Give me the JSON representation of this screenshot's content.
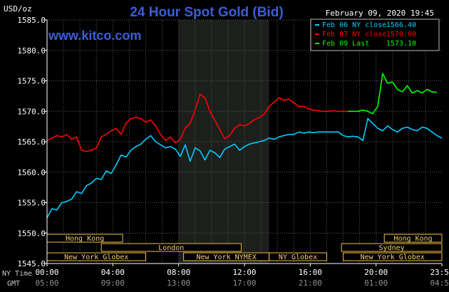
{
  "chart_data": {
    "type": "line",
    "title": "24 Hour Spot Gold (Bid)",
    "watermark": "www.kitco.com",
    "date_label": "February 09, 2020 19:45",
    "ylabel": "USD/oz",
    "ylim": [
      1545.0,
      1585.0
    ],
    "yticks": [
      "1585.0",
      "1580.0",
      "1575.0",
      "1570.0",
      "1565.0",
      "1560.0",
      "1555.0",
      "1550.0",
      "1545.0"
    ],
    "ytick_values": [
      1585,
      1580,
      1575,
      1570,
      1565,
      1560,
      1555,
      1550,
      1545
    ],
    "xlim": [
      0,
      24
    ],
    "grid": true,
    "shaded_interval_hours": [
      8.0,
      13.5
    ],
    "x_axis_labels": {
      "ny_time": "NY Time",
      "gmt": "GMT"
    },
    "x_ticks_ny": [
      "00:00",
      "04:00",
      "08:00",
      "12:00",
      "16:00",
      "20:00",
      "23:59"
    ],
    "x_ticks_gmt": [
      "05:00",
      "09:00",
      "13:00",
      "17:00",
      "21:00",
      "01:00",
      "04:59"
    ],
    "x_tick_hours": [
      0,
      4,
      8,
      12,
      16,
      20,
      24
    ],
    "legend_placement": "top-right",
    "legend": [
      {
        "label": "Feb 06 NY close",
        "value": "1566.40",
        "color": "#00ccff"
      },
      {
        "label": "Feb 07 NY close",
        "value": "1570.00",
        "color": "#ff0000"
      },
      {
        "label": "Feb 09 Last",
        "value": "1573.10",
        "color": "#00ff00"
      }
    ],
    "sessions": [
      {
        "name": "Hong Kong",
        "start": 0.0,
        "end": 4.6,
        "row": 0
      },
      {
        "name": "Hong Kong",
        "start": 20.5,
        "end": 24.0,
        "row": 0
      },
      {
        "name": "London",
        "start": 3.3,
        "end": 11.8,
        "row": 1
      },
      {
        "name": "Sydney",
        "start": 17.9,
        "end": 24.0,
        "row": 1
      },
      {
        "name": "New York Globex",
        "start": 0.0,
        "end": 6.0,
        "row": 2
      },
      {
        "name": "New York NYMEX",
        "start": 8.3,
        "end": 13.5,
        "row": 2
      },
      {
        "name": "NY Globex",
        "start": 13.5,
        "end": 17.0,
        "row": 2
      },
      {
        "name": "New York Globex",
        "start": 18.0,
        "end": 24.0,
        "row": 2
      }
    ],
    "series": [
      {
        "name": "Feb 06 NY close",
        "color": "#00ccff",
        "x": [
          0,
          0.3,
          0.6,
          0.9,
          1.2,
          1.5,
          1.8,
          2.1,
          2.4,
          2.7,
          3.0,
          3.3,
          3.6,
          3.9,
          4.2,
          4.5,
          4.8,
          5.1,
          5.4,
          5.7,
          6.0,
          6.3,
          6.6,
          6.9,
          7.2,
          7.5,
          7.8,
          8.1,
          8.4,
          8.7,
          9.0,
          9.3,
          9.6,
          9.9,
          10.2,
          10.5,
          10.8,
          11.1,
          11.4,
          11.7,
          12.0,
          12.3,
          12.6,
          12.9,
          13.2,
          13.5,
          13.8,
          14.1,
          14.4,
          14.7,
          15.0,
          15.3,
          15.6,
          15.9,
          16.2,
          16.5,
          16.8,
          17.1,
          17.4,
          17.7,
          18.0,
          18.3,
          18.6,
          18.9,
          19.2,
          19.5,
          19.8,
          20.1,
          20.4,
          20.7,
          21.0,
          21.3,
          21.6,
          21.9,
          22.2,
          22.5,
          22.8,
          23.1,
          23.4,
          23.7,
          24.0
        ],
        "y": [
          1552.5,
          1554.0,
          1553.8,
          1555.0,
          1555.2,
          1555.6,
          1556.8,
          1556.5,
          1557.8,
          1558.2,
          1559.0,
          1558.8,
          1560.2,
          1559.8,
          1561.2,
          1562.8,
          1562.5,
          1563.6,
          1564.2,
          1564.6,
          1565.4,
          1566.0,
          1565.0,
          1564.5,
          1564.0,
          1564.2,
          1563.8,
          1562.6,
          1564.5,
          1561.8,
          1564.0,
          1563.5,
          1562.0,
          1563.6,
          1563.2,
          1562.4,
          1563.8,
          1564.2,
          1564.6,
          1563.6,
          1564.2,
          1564.6,
          1564.8,
          1565.0,
          1565.2,
          1565.6,
          1565.4,
          1565.8,
          1566.0,
          1566.2,
          1566.2,
          1566.6,
          1566.4,
          1566.6,
          1566.5,
          1566.6,
          1566.6,
          1566.6,
          1566.6,
          1566.6,
          1566.0,
          1565.8,
          1565.9,
          1565.8,
          1565.2,
          1568.8,
          1568.0,
          1567.2,
          1566.8,
          1567.6,
          1567.0,
          1566.6,
          1567.2,
          1567.4,
          1567.0,
          1566.8,
          1567.4,
          1567.2,
          1566.6,
          1566.0,
          1565.6
        ]
      },
      {
        "name": "Feb 07 NY close",
        "color": "#ff0000",
        "x": [
          0,
          0.3,
          0.6,
          0.9,
          1.2,
          1.5,
          1.8,
          2.1,
          2.4,
          2.7,
          3.0,
          3.3,
          3.6,
          3.9,
          4.2,
          4.5,
          4.8,
          5.1,
          5.4,
          5.7,
          6.0,
          6.3,
          6.6,
          6.9,
          7.2,
          7.5,
          7.8,
          8.1,
          8.4,
          8.7,
          9.0,
          9.3,
          9.6,
          9.9,
          10.2,
          10.5,
          10.8,
          11.1,
          11.4,
          11.7,
          12.0,
          12.3,
          12.6,
          12.9,
          13.2,
          13.5,
          13.8,
          14.1,
          14.4,
          14.7,
          15.0,
          15.3,
          15.6,
          15.9,
          16.2,
          16.5,
          16.8,
          17.1,
          17.4,
          17.7,
          18.0,
          18.3
        ],
        "y": [
          1565.2,
          1565.6,
          1566.0,
          1565.8,
          1566.2,
          1565.4,
          1565.8,
          1563.6,
          1563.4,
          1563.6,
          1564.0,
          1565.8,
          1566.2,
          1566.8,
          1567.2,
          1566.2,
          1568.0,
          1568.8,
          1569.0,
          1568.8,
          1568.2,
          1568.6,
          1567.6,
          1566.2,
          1565.2,
          1565.8,
          1564.8,
          1565.4,
          1567.2,
          1568.0,
          1570.2,
          1572.8,
          1572.2,
          1570.0,
          1568.5,
          1567.0,
          1565.5,
          1566.0,
          1567.2,
          1567.8,
          1567.6,
          1568.0,
          1568.6,
          1569.0,
          1569.5,
          1570.8,
          1571.5,
          1572.2,
          1571.8,
          1572.0,
          1571.4,
          1570.8,
          1570.8,
          1570.4,
          1570.2,
          1570.1,
          1570.0,
          1570.0,
          1570.1,
          1570.0,
          1570.0,
          1570.0
        ]
      },
      {
        "name": "Feb 09 Last",
        "color": "#00ff00",
        "x": [
          18.3,
          18.6,
          18.9,
          19.2,
          19.5,
          19.8,
          20.1,
          20.4,
          20.7,
          21.0,
          21.3,
          21.6,
          21.9,
          22.2,
          22.5,
          22.8,
          23.1,
          23.4,
          23.7
        ],
        "y": [
          1570.0,
          1570.0,
          1570.0,
          1570.2,
          1570.0,
          1569.6,
          1570.8,
          1576.2,
          1574.6,
          1574.8,
          1573.6,
          1573.2,
          1574.2,
          1573.0,
          1573.4,
          1573.0,
          1573.6,
          1573.2,
          1573.1
        ]
      }
    ]
  }
}
